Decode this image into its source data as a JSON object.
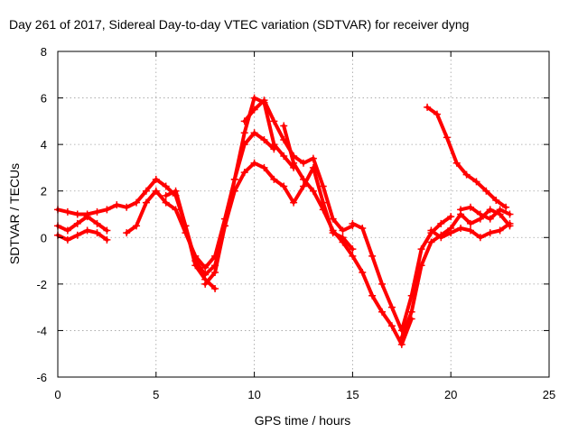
{
  "chart_data": {
    "type": "scatter",
    "title": "Day 261 of 2017, Sidereal Day-to-day VTEC variation (SDTVAR) for receiver dyng",
    "xlabel": "GPS time / hours",
    "ylabel": "SDTVAR / TECUs",
    "xlim": [
      0,
      25
    ],
    "ylim": [
      -6,
      8
    ],
    "xticks": [
      "0",
      "5",
      "10",
      "15",
      "20",
      "25"
    ],
    "yticks": [
      "-6",
      "-4",
      "-2",
      "0",
      "2",
      "4",
      "6",
      "8"
    ],
    "grid": true,
    "marker": "plus",
    "color": "#ff0000",
    "series": [
      {
        "x": [
          0,
          0.5,
          1,
          1.5,
          2,
          2.5,
          3,
          3.5,
          4,
          4.5,
          5,
          5.5,
          6,
          6.5,
          7,
          7.5,
          8
        ],
        "y": [
          1.2,
          1.1,
          1.0,
          1.0,
          1.1,
          1.2,
          1.4,
          1.3,
          1.5,
          2.0,
          2.5,
          2.2,
          1.8,
          0.5,
          -1.2,
          -1.8,
          -2.2
        ]
      },
      {
        "x": [
          0,
          0.5,
          1,
          1.5,
          2,
          2.5
        ],
        "y": [
          0.5,
          0.3,
          0.6,
          0.9,
          0.6,
          0.3
        ]
      },
      {
        "x": [
          0,
          0.5,
          1,
          1.5,
          2,
          2.5
        ],
        "y": [
          0.1,
          -0.1,
          0.1,
          0.3,
          0.2,
          -0.1
        ]
      },
      {
        "x": [
          3.5,
          4,
          4.5,
          5,
          5.5,
          6,
          6.5,
          7,
          7.5,
          8,
          8.5,
          9,
          9.5,
          10,
          10.5,
          11
        ],
        "y": [
          0.2,
          0.5,
          1.5,
          2.0,
          1.5,
          1.2,
          0.2,
          -0.8,
          -1.3,
          -0.8,
          0.8,
          2.5,
          4.0,
          4.5,
          4.2,
          3.8
        ]
      },
      {
        "x": [
          5.5,
          6,
          6.5,
          7,
          7.5,
          8,
          8.5,
          9,
          9.5,
          10,
          10.5,
          11,
          11.5,
          12
        ],
        "y": [
          1.8,
          2.0,
          0.5,
          -1.0,
          -1.6,
          -1.2,
          0.5,
          2.5,
          4.5,
          6.0,
          5.8,
          4.0,
          3.5,
          3.0
        ]
      },
      {
        "x": [
          7.5,
          8,
          8.5,
          9,
          9.5,
          10,
          10.5,
          11,
          11.5,
          12,
          12.5,
          13,
          13.5,
          14,
          14.5,
          15
        ],
        "y": [
          -2.0,
          -1.5,
          0.5,
          2.0,
          2.8,
          3.2,
          3.0,
          2.5,
          2.2,
          1.5,
          2.2,
          3.0,
          1.5,
          0.2,
          0.0,
          -0.5
        ]
      },
      {
        "x": [
          9.5,
          10,
          10.5,
          11,
          11.5,
          12,
          12.5,
          13,
          13.5,
          14,
          14.5,
          15
        ],
        "y": [
          5.0,
          5.5,
          5.9,
          5.0,
          4.2,
          3.5,
          3.2,
          3.4,
          2.2,
          0.8,
          0.3,
          0.5
        ]
      },
      {
        "x": [
          11.5,
          12,
          12.5,
          13,
          13.5,
          14,
          14.5,
          15,
          15.5,
          16,
          16.5,
          17,
          17.5,
          18
        ],
        "y": [
          4.8,
          3.2,
          2.5,
          2.0,
          1.2,
          0.3,
          -0.2,
          -0.8,
          -1.5,
          -2.5,
          -3.2,
          -3.8,
          -4.6,
          -3.5
        ]
      },
      {
        "x": [
          15,
          15.5,
          16,
          16.5,
          17,
          17.5,
          18,
          18.5,
          19,
          19.5,
          20
        ],
        "y": [
          0.6,
          0.4,
          -0.8,
          -2.0,
          -3.0,
          -4.0,
          -2.5,
          -0.5,
          0.2,
          0.6,
          0.9
        ]
      },
      {
        "x": [
          17.5,
          18,
          18.5,
          19,
          19.5,
          20,
          20.5,
          21,
          21.5,
          22,
          22.5,
          23
        ],
        "y": [
          -4.3,
          -3.2,
          -1.2,
          -0.2,
          0.1,
          0.4,
          1.0,
          0.6,
          0.8,
          1.2,
          1.0,
          0.5
        ]
      },
      {
        "x": [
          19,
          19.5,
          20,
          20.5,
          21,
          21.5,
          22,
          22.5,
          23
        ],
        "y": [
          0.3,
          0.0,
          0.2,
          0.4,
          0.3,
          0.0,
          0.2,
          0.3,
          0.6
        ]
      },
      {
        "x": [
          18.8,
          19.3,
          19.8,
          20.3,
          20.8,
          21.3,
          21.8,
          22.3,
          22.8
        ],
        "y": [
          5.6,
          5.3,
          4.3,
          3.2,
          2.7,
          2.4,
          2.0,
          1.6,
          1.3
        ]
      },
      {
        "x": [
          20.5,
          21,
          21.5,
          22,
          22.5,
          23
        ],
        "y": [
          1.2,
          1.3,
          1.0,
          0.8,
          1.2,
          1.0
        ]
      }
    ]
  }
}
